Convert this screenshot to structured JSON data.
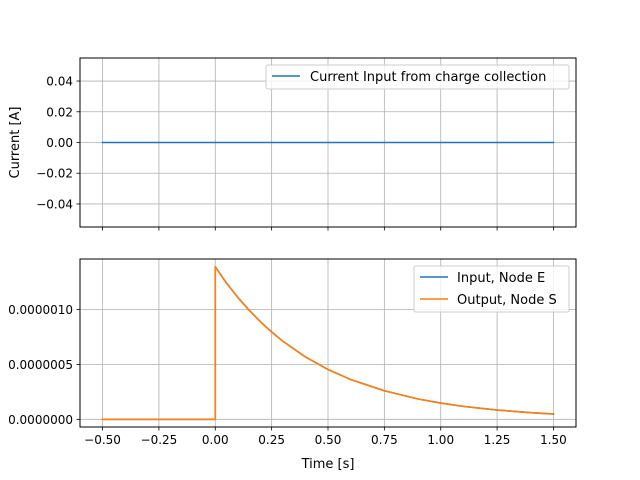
{
  "chart_data": [
    {
      "type": "line",
      "title": "",
      "xlabel": "",
      "ylabel": "Current [A]",
      "xlim": [
        -0.6,
        1.6
      ],
      "ylim": [
        -0.055,
        0.055
      ],
      "grid": true,
      "legend": "top-right",
      "x_ticks": [
        -0.5,
        -0.25,
        0.0,
        0.25,
        0.5,
        0.75,
        1.0,
        1.25,
        1.5
      ],
      "x_tick_labels_visible": false,
      "y_ticks": [
        -0.04,
        -0.02,
        0.0,
        0.02,
        0.04
      ],
      "y_tick_labels": [
        "−0.04",
        "−0.02",
        "0.00",
        "0.02",
        "0.04"
      ],
      "series": [
        {
          "name": "Current Input from charge collection",
          "color": "#1f77b4",
          "x": [
            -0.5,
            1.5
          ],
          "y": [
            0.0,
            0.0
          ]
        }
      ]
    },
    {
      "type": "line",
      "title": "",
      "xlabel": "Time [s]",
      "ylabel": "",
      "xlim": [
        -0.6,
        1.6
      ],
      "ylim": [
        -7e-08,
        1.46e-06
      ],
      "grid": true,
      "legend": "top-right",
      "x_ticks": [
        -0.5,
        -0.25,
        0.0,
        0.25,
        0.5,
        0.75,
        1.0,
        1.25,
        1.5
      ],
      "x_tick_labels": [
        "−0.50",
        "−0.25",
        "0.00",
        "0.25",
        "0.50",
        "0.75",
        "1.00",
        "1.25",
        "1.50"
      ],
      "y_ticks": [
        0.0,
        5e-07,
        1e-06
      ],
      "y_tick_labels": [
        "0.0000000",
        "0.0000005",
        "0.0000010"
      ],
      "series": [
        {
          "name": "Input, Node E",
          "color": "#1f77b4",
          "x": [
            -0.5,
            -0.25,
            0.0,
            0.0,
            0.05,
            0.1,
            0.15,
            0.2,
            0.25,
            0.3,
            0.4,
            0.5,
            0.6,
            0.75,
            0.9,
            1.0,
            1.1,
            1.25,
            1.4,
            1.5
          ],
          "y": [
            0.0,
            0.0,
            0.0,
            1.39e-06,
            1.24e-06,
            1.11e-06,
            9.95e-07,
            8.89e-07,
            7.95e-07,
            7.11e-07,
            5.68e-07,
            4.54e-07,
            3.63e-07,
            2.6e-07,
            1.85e-07,
            1.48e-07,
            1.18e-07,
            8.45e-08,
            6.04e-08,
            4.83e-08
          ]
        },
        {
          "name": "Output, Node S",
          "color": "#ff7f0e",
          "x": [
            -0.5,
            -0.25,
            0.0,
            0.0,
            0.05,
            0.1,
            0.15,
            0.2,
            0.25,
            0.3,
            0.4,
            0.5,
            0.6,
            0.75,
            0.9,
            1.0,
            1.1,
            1.25,
            1.4,
            1.5
          ],
          "y": [
            0.0,
            0.0,
            0.0,
            1.39e-06,
            1.24e-06,
            1.11e-06,
            9.95e-07,
            8.89e-07,
            7.95e-07,
            7.11e-07,
            5.68e-07,
            4.54e-07,
            3.63e-07,
            2.6e-07,
            1.85e-07,
            1.48e-07,
            1.18e-07,
            8.45e-08,
            6.04e-08,
            4.83e-08
          ]
        }
      ]
    }
  ]
}
